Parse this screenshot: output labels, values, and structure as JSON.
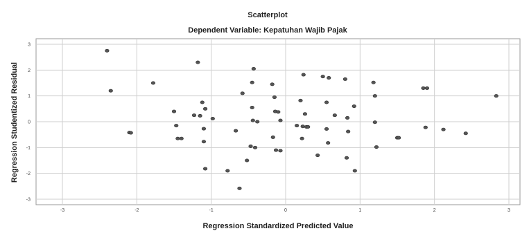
{
  "chart_data": {
    "type": "scatter",
    "title": "Scatterplot",
    "subtitle": "Dependent Variable: Kepatuhan Wajib Pajak",
    "xlabel": "Regression Standardized Predicted Value",
    "ylabel": "Regression Studentized Residual",
    "xlim": [
      -3,
      3
    ],
    "ylim": [
      -3,
      3
    ],
    "grid": true,
    "x_ticks": [
      -3,
      -2,
      -1,
      0,
      1,
      2,
      3
    ],
    "y_ticks": [
      -3,
      -2,
      -1,
      0,
      1,
      2,
      3
    ],
    "x_tick_labels": [
      "-3",
      "-2",
      "-1",
      "0",
      "1",
      "2",
      "3"
    ],
    "y_tick_labels": [
      "-3",
      "-2",
      "-1",
      "0",
      "1",
      "2",
      "3"
    ],
    "x": [
      -2.4,
      -2.35,
      -2.1,
      -2.08,
      -1.78,
      -1.5,
      -1.47,
      -1.45,
      -1.4,
      -1.23,
      -1.18,
      -1.15,
      -1.12,
      -1.1,
      -1.1,
      -1.08,
      -1.08,
      -0.98,
      -0.78,
      -0.67,
      -0.62,
      -0.58,
      -0.52,
      -0.47,
      -0.45,
      -0.45,
      -0.44,
      -0.43,
      -0.41,
      -0.38,
      -0.18,
      -0.17,
      -0.15,
      -0.14,
      -0.13,
      -0.1,
      -0.07,
      -0.07,
      0.15,
      0.2,
      0.22,
      0.23,
      0.24,
      0.26,
      0.28,
      0.3,
      0.43,
      0.5,
      0.55,
      0.55,
      0.57,
      0.58,
      0.66,
      0.8,
      0.82,
      0.83,
      0.84,
      0.92,
      0.93,
      1.18,
      1.2,
      1.2,
      1.22,
      1.5,
      1.52,
      1.85,
      1.88,
      1.9,
      2.12,
      2.42,
      2.83
    ],
    "y": [
      2.75,
      1.2,
      -0.42,
      -0.43,
      1.5,
      0.4,
      -0.15,
      -0.65,
      -0.65,
      0.25,
      2.3,
      0.23,
      0.75,
      -0.27,
      -0.77,
      -1.82,
      0.5,
      0.12,
      -1.9,
      -0.35,
      -2.58,
      1.1,
      -1.5,
      -0.95,
      0.55,
      1.52,
      0.05,
      2.05,
      -1.0,
      0.0,
      1.45,
      -0.6,
      0.95,
      0.4,
      -1.1,
      0.38,
      -1.12,
      0.05,
      -0.15,
      0.82,
      -0.65,
      -0.18,
      1.82,
      0.3,
      -0.2,
      -0.2,
      -1.3,
      1.75,
      0.75,
      -0.28,
      -0.82,
      1.7,
      0.25,
      1.65,
      -1.4,
      0.15,
      -0.38,
      0.6,
      -1.9,
      1.52,
      1.0,
      -0.02,
      -0.98,
      -0.62,
      -0.62,
      1.3,
      -0.22,
      1.3,
      -0.3,
      -0.45,
      1.0
    ]
  }
}
